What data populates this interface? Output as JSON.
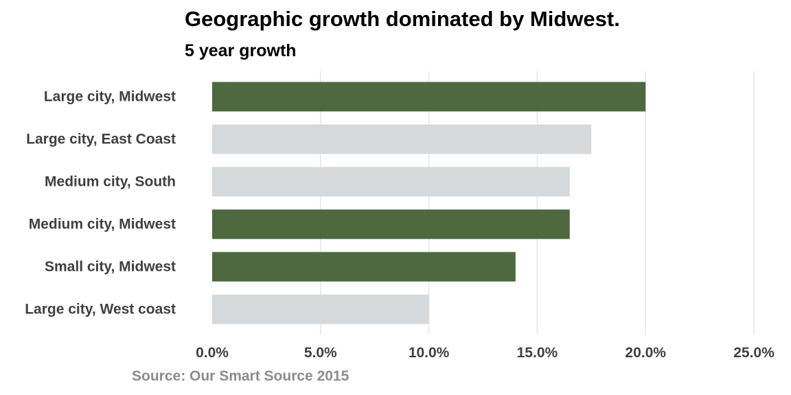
{
  "title": "Geographic growth dominated by Midwest.",
  "subtitle": "5 year growth",
  "source": "Source: Our Smart Source 2015",
  "colors": {
    "highlight": "#4e6840",
    "muted": "#d6d9dc",
    "grid": "#e6e6e6",
    "label": "#404040",
    "source": "#8c8c8c"
  },
  "chart_data": {
    "type": "bar",
    "orientation": "horizontal",
    "title": "Geographic growth dominated by Midwest.",
    "subtitle": "5 year growth",
    "categories": [
      "Large city, Midwest",
      "Large city, East Coast",
      "Medium city, South",
      "Medium city, Midwest",
      "Small city, Midwest",
      "Large city, West coast"
    ],
    "values": [
      20.0,
      17.5,
      16.5,
      16.5,
      14.0,
      10.0
    ],
    "highlight": [
      true,
      false,
      false,
      true,
      true,
      false
    ],
    "xlim": [
      0,
      25
    ],
    "xticks": [
      0,
      5,
      10,
      15,
      20,
      25
    ],
    "xtick_labels": [
      "0.0%",
      "5.0%",
      "10.0%",
      "15.0%",
      "20.0%",
      "25.0%"
    ],
    "xlabel": "",
    "ylabel": "",
    "grid": "vertical",
    "legend": "none"
  }
}
